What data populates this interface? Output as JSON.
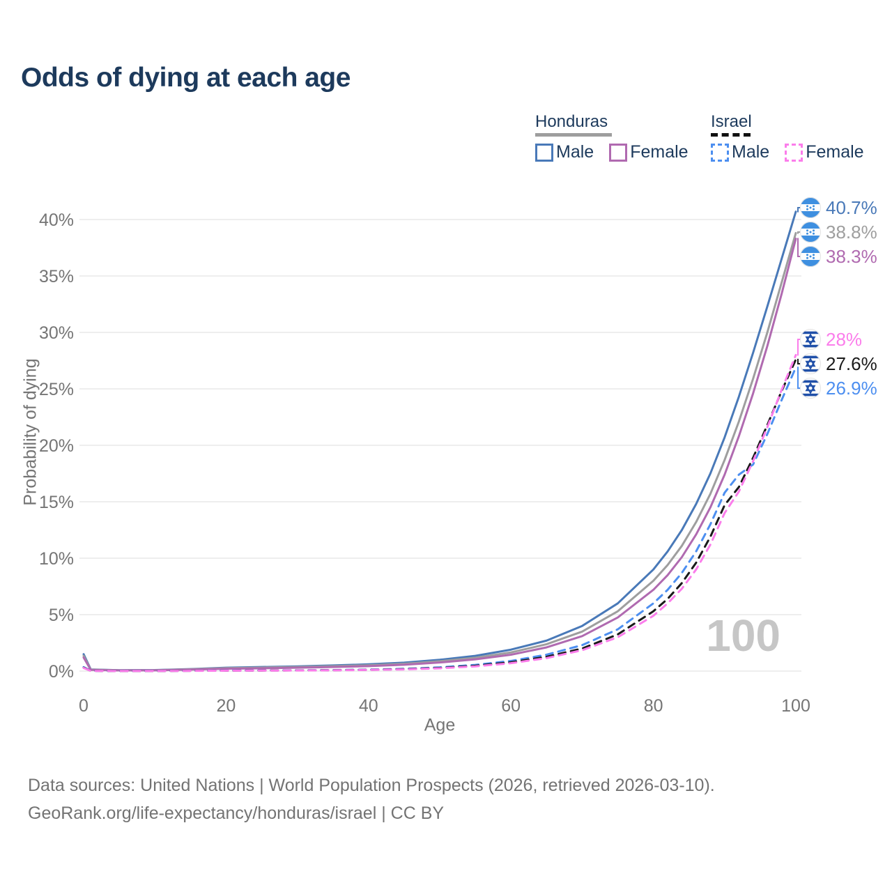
{
  "title": "Odds of dying at each age",
  "legend": {
    "groups": [
      {
        "country": "Honduras",
        "line_style": "solid",
        "underline_color": "#9e9e9e",
        "items": [
          {
            "label": "Male",
            "color": "#4979b8"
          },
          {
            "label": "Female",
            "color": "#b06ab0"
          }
        ]
      },
      {
        "country": "Israel",
        "line_style": "dashed",
        "underline_color": "#111111",
        "items": [
          {
            "label": "Male",
            "color": "#4d8ff0"
          },
          {
            "label": "Female",
            "color": "#fb7deb"
          }
        ]
      }
    ]
  },
  "chart_data": {
    "type": "line",
    "title": "Odds of dying at each age",
    "xlabel": "Age",
    "ylabel": "Probability of dying",
    "xlim": [
      0,
      100
    ],
    "ylim": [
      0,
      40
    ],
    "grid": "horizontal",
    "legend_position": "top-right",
    "xticks": {
      "values": [
        0,
        20,
        40,
        60,
        80,
        100
      ],
      "labels": [
        "0",
        "20",
        "40",
        "60",
        "80",
        "100"
      ]
    },
    "yticks": {
      "values": [
        0,
        5,
        10,
        15,
        20,
        25,
        30,
        35,
        40
      ],
      "labels": [
        "0%",
        "5%",
        "10%",
        "15%",
        "20%",
        "25%",
        "30%",
        "35%",
        "40%"
      ]
    },
    "x_ages": [
      0,
      1,
      5,
      10,
      15,
      20,
      25,
      30,
      35,
      40,
      45,
      50,
      55,
      60,
      65,
      70,
      75,
      80,
      82,
      84,
      86,
      88,
      90,
      92,
      94,
      96,
      98,
      100
    ],
    "series": [
      {
        "name": "Honduras Male",
        "country": "Honduras",
        "group": "Male",
        "dash": "solid",
        "color": "#4979b8",
        "end_label": "40.7%",
        "end_value": 40.7,
        "values": [
          1.5,
          0.15,
          0.08,
          0.09,
          0.18,
          0.3,
          0.36,
          0.42,
          0.5,
          0.6,
          0.75,
          1.0,
          1.35,
          1.9,
          2.7,
          4.0,
          6.0,
          9.0,
          10.6,
          12.5,
          14.8,
          17.5,
          20.7,
          24.3,
          28.2,
          32.3,
          36.5,
          40.7
        ]
      },
      {
        "name": "Honduras Both sexes",
        "country": "Honduras",
        "group": "Both",
        "dash": "solid",
        "color": "#9e9e9e",
        "end_label": "38.8%",
        "end_value": 38.8,
        "values": [
          1.35,
          0.13,
          0.07,
          0.08,
          0.16,
          0.26,
          0.31,
          0.36,
          0.43,
          0.52,
          0.65,
          0.87,
          1.18,
          1.65,
          2.38,
          3.5,
          5.3,
          8.0,
          9.4,
          11.1,
          13.2,
          15.7,
          18.7,
          22.1,
          25.9,
          30.0,
          34.4,
          38.8
        ]
      },
      {
        "name": "Honduras Female",
        "country": "Honduras",
        "group": "Female",
        "dash": "solid",
        "color": "#b06ab0",
        "end_label": "38.3%",
        "end_value": 38.3,
        "values": [
          1.2,
          0.11,
          0.06,
          0.07,
          0.13,
          0.21,
          0.25,
          0.3,
          0.36,
          0.44,
          0.56,
          0.76,
          1.04,
          1.45,
          2.1,
          3.1,
          4.75,
          7.2,
          8.5,
          10.1,
          12.1,
          14.5,
          17.4,
          20.8,
          24.6,
          28.8,
          33.4,
          38.3
        ]
      },
      {
        "name": "Israel Male",
        "country": "Israel",
        "group": "Male",
        "dash": "dashed",
        "color": "#4d8ff0",
        "end_label": "26.9%",
        "end_value": 26.9,
        "values": [
          0.35,
          0.03,
          0.01,
          0.012,
          0.03,
          0.05,
          0.06,
          0.07,
          0.09,
          0.13,
          0.2,
          0.33,
          0.55,
          0.9,
          1.45,
          2.3,
          3.7,
          6.0,
          7.2,
          8.7,
          10.6,
          13.0,
          15.8,
          17.4,
          18.3,
          21.0,
          24.0,
          26.9
        ]
      },
      {
        "name": "Israel Both sexes",
        "country": "Israel",
        "group": "Both",
        "dash": "dashed",
        "color": "#1a1a1a",
        "end_label": "27.6%",
        "end_value": 27.6,
        "values": [
          0.3,
          0.025,
          0.01,
          0.01,
          0.025,
          0.04,
          0.05,
          0.06,
          0.08,
          0.11,
          0.17,
          0.28,
          0.47,
          0.78,
          1.27,
          2.0,
          3.25,
          5.3,
          6.4,
          7.8,
          9.6,
          11.9,
          14.7,
          16.3,
          18.9,
          21.8,
          24.8,
          27.6
        ]
      },
      {
        "name": "Israel Female",
        "country": "Israel",
        "group": "Female",
        "dash": "dashed",
        "color": "#fb7deb",
        "end_label": "28%",
        "end_value": 28.0,
        "values": [
          0.28,
          0.02,
          0.01,
          0.01,
          0.02,
          0.035,
          0.045,
          0.055,
          0.07,
          0.1,
          0.15,
          0.25,
          0.42,
          0.7,
          1.15,
          1.85,
          3.0,
          4.9,
          6.0,
          7.3,
          9.0,
          11.2,
          14.0,
          15.9,
          18.6,
          21.6,
          24.9,
          28.0
        ]
      }
    ]
  },
  "watermark": "100",
  "footer": {
    "line1": "Data sources: United Nations | World Population Prospects (2026, retrieved 2026-03-10).",
    "line2": "GeoRank.org/life-expectancy/honduras/israel | CC BY"
  }
}
